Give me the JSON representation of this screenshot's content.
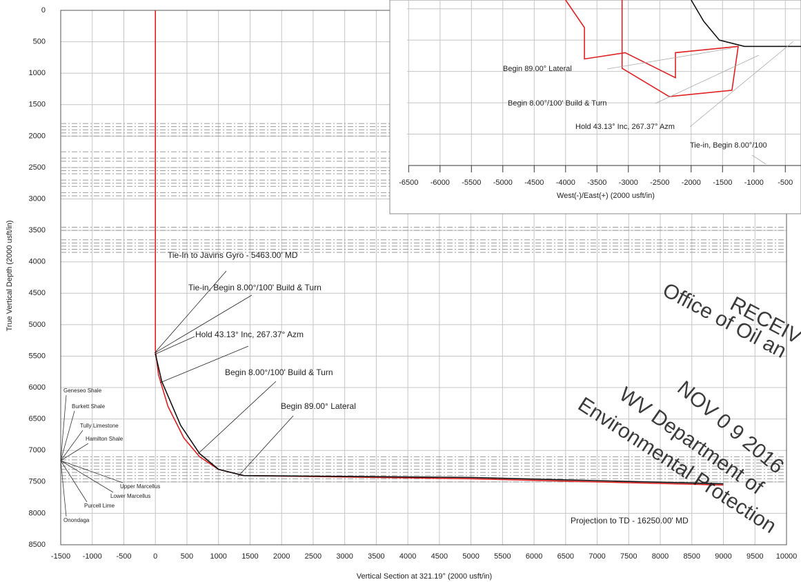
{
  "chart_data": [
    {
      "type": "line",
      "xlabel": "Vertical Section at 321.19° (2000 usft/in)",
      "ylabel": "True Vertical Depth (2000 usft/in)",
      "xlim": [
        -1500,
        10000
      ],
      "ylim": [
        0,
        8500
      ],
      "y_inverted": true,
      "grid": true,
      "xticks": [
        -1500,
        -1000,
        -500,
        0,
        500,
        1000,
        1500,
        2000,
        2500,
        3000,
        3500,
        4000,
        4500,
        5000,
        5500,
        6000,
        6500,
        7000,
        7500,
        8000,
        8500,
        9000,
        9500,
        10000
      ],
      "yticks": [
        0,
        500,
        1000,
        1500,
        2000,
        2500,
        3000,
        3500,
        4000,
        4500,
        5000,
        5500,
        6000,
        6500,
        7000,
        7500,
        8000,
        8500
      ],
      "series": [
        {
          "color": "#e02020",
          "x": [
            0,
            0,
            50,
            200,
            450,
            700,
            1000,
            1400,
            5000,
            9000
          ],
          "values": [
            0,
            5400,
            5800,
            6300,
            6800,
            7100,
            7300,
            7400,
            7450,
            7550
          ]
        },
        {
          "color": "#111111",
          "x": [
            0,
            100,
            400,
            700,
            1000,
            1400,
            5000,
            9000
          ],
          "values": [
            5463,
            5900,
            6600,
            7050,
            7300,
            7400,
            7430,
            7530
          ]
        }
      ],
      "formation_tops": [
        1800,
        1850,
        1900,
        1950,
        2000,
        2250,
        2350,
        2400,
        2500,
        2550,
        2600,
        2700,
        2750,
        2800,
        2900,
        2950,
        3450,
        3500,
        3650,
        3700,
        3750,
        3800,
        3850,
        7100,
        7150,
        7200,
        7250,
        7300,
        7350,
        7400,
        7450,
        7500
      ],
      "formation_line_color": "#9a9a9a",
      "formation_text_color": "#1a7a1a",
      "formations": [
        "Geneseo Shale",
        "Burkett Shale",
        "Tully Limestone",
        "Hamilton Shale",
        "Upper Marcellus",
        "Lower Marcellus",
        "Purcell Lime",
        "Onondaga"
      ],
      "annotations": [
        {
          "text": "Tie-In to Javins Gyro - 5463.00' MD",
          "color": "#e02020"
        },
        {
          "text": "Tie-in, Begin 8.00°/100' Build & Turn",
          "color": "#111111"
        },
        {
          "text": "Hold 43.13° Inc, 267.37° Azm",
          "color": "#111111"
        },
        {
          "text": "Begin 8.00°/100' Build & Turn",
          "color": "#111111"
        },
        {
          "text": "Begin 89.00° Lateral",
          "color": "#111111"
        },
        {
          "text": "Projection to TD - 16250.00' MD",
          "color": "#e02020"
        }
      ]
    },
    {
      "type": "line",
      "xlabel": "West(-)/East(+) (2000 usft/in)",
      "xlim": [
        -6800,
        -250
      ],
      "ylim": [
        0,
        2640
      ],
      "grid": true,
      "xticks": [
        -6500,
        -6000,
        -5500,
        -5000,
        -4500,
        -4000,
        -3500,
        -3000,
        -2500,
        -2000,
        -1500,
        -1000,
        -500
      ],
      "ygrid": [
        500,
        1000,
        1500,
        2000,
        2500
      ],
      "series": [
        {
          "color": "#e02020",
          "x": [
            -4000,
            -3700,
            -3700,
            -3050,
            -2250,
            -2250,
            -1250,
            -1350,
            -2350,
            -3100,
            -3100
          ],
          "values": [
            2640,
            2200,
            1700,
            1800,
            1400,
            1800,
            1900,
            1200,
            1100,
            1550,
            2640
          ]
        },
        {
          "color": "#111111",
          "x": [
            -2000,
            -1800,
            -1550,
            -1150,
            -250
          ],
          "values": [
            2640,
            2300,
            2000,
            1900,
            1900
          ]
        }
      ],
      "annotations": [
        {
          "text": "Begin 89.00° Lateral",
          "color": "#111111"
        },
        {
          "text": "Begin 8.00°/100' Build & Turn",
          "color": "#111111"
        },
        {
          "text": "Hold 43.13° Inc, 267.37° Azm",
          "color": "#111111"
        },
        {
          "text": "Tie-in, Begin 8.00°/100",
          "color": "#111111"
        }
      ]
    }
  ],
  "stamp_lines": [
    "RECEIV",
    "Office of Oil an",
    "NOV 0 9 2016",
    "WV Department of",
    "Environmental Protection"
  ]
}
